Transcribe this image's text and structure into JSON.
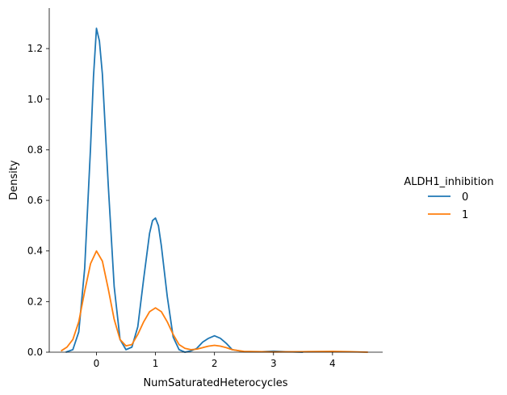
{
  "chart_data": {
    "type": "line",
    "xlabel": "NumSaturatedHeterocycles",
    "ylabel": "Density",
    "xlim": [
      -0.8,
      4.85
    ],
    "ylim": [
      0,
      1.36
    ],
    "xticks": [
      0,
      1,
      2,
      3,
      4
    ],
    "xtick_labels": [
      "0",
      "1",
      "2",
      "3",
      "4"
    ],
    "yticks": [
      0.0,
      0.2,
      0.4,
      0.6,
      0.8,
      1.0,
      1.2
    ],
    "ytick_labels": [
      "0.0",
      "0.2",
      "0.4",
      "0.6",
      "0.8",
      "1.0",
      "1.2"
    ],
    "grid": false,
    "legend": {
      "title": "ALDH1_inhibition",
      "placement": "right"
    },
    "series": [
      {
        "name": "0",
        "color": "#1f77b4",
        "x": [
          -0.52,
          -0.4,
          -0.3,
          -0.2,
          -0.1,
          -0.05,
          0.0,
          0.05,
          0.1,
          0.2,
          0.3,
          0.4,
          0.5,
          0.6,
          0.7,
          0.8,
          0.9,
          0.95,
          1.0,
          1.05,
          1.1,
          1.2,
          1.3,
          1.4,
          1.5,
          1.6,
          1.7,
          1.8,
          1.9,
          2.0,
          2.1,
          2.2,
          2.3,
          2.5,
          2.8,
          3.0,
          3.2,
          3.5
        ],
        "values": [
          0.0,
          0.01,
          0.08,
          0.33,
          0.81,
          1.09,
          1.28,
          1.23,
          1.1,
          0.66,
          0.26,
          0.05,
          0.01,
          0.02,
          0.1,
          0.29,
          0.47,
          0.52,
          0.53,
          0.5,
          0.42,
          0.22,
          0.06,
          0.01,
          0.0,
          0.005,
          0.015,
          0.04,
          0.055,
          0.065,
          0.055,
          0.035,
          0.01,
          0.002,
          0.002,
          0.004,
          0.002,
          0.0
        ]
      },
      {
        "name": "1",
        "color": "#ff7f0e",
        "x": [
          -0.6,
          -0.5,
          -0.4,
          -0.3,
          -0.2,
          -0.1,
          0.0,
          0.1,
          0.2,
          0.3,
          0.4,
          0.5,
          0.6,
          0.7,
          0.8,
          0.9,
          1.0,
          1.1,
          1.2,
          1.3,
          1.4,
          1.5,
          1.6,
          1.7,
          1.8,
          1.9,
          2.0,
          2.1,
          2.2,
          2.3,
          2.5,
          3.0,
          3.5,
          4.0,
          4.3,
          4.6
        ],
        "values": [
          0.005,
          0.02,
          0.05,
          0.12,
          0.24,
          0.35,
          0.4,
          0.36,
          0.25,
          0.13,
          0.05,
          0.025,
          0.03,
          0.07,
          0.12,
          0.16,
          0.175,
          0.16,
          0.12,
          0.07,
          0.03,
          0.015,
          0.01,
          0.012,
          0.018,
          0.024,
          0.027,
          0.024,
          0.018,
          0.01,
          0.003,
          0.001,
          0.002,
          0.003,
          0.002,
          0.0
        ]
      }
    ]
  }
}
